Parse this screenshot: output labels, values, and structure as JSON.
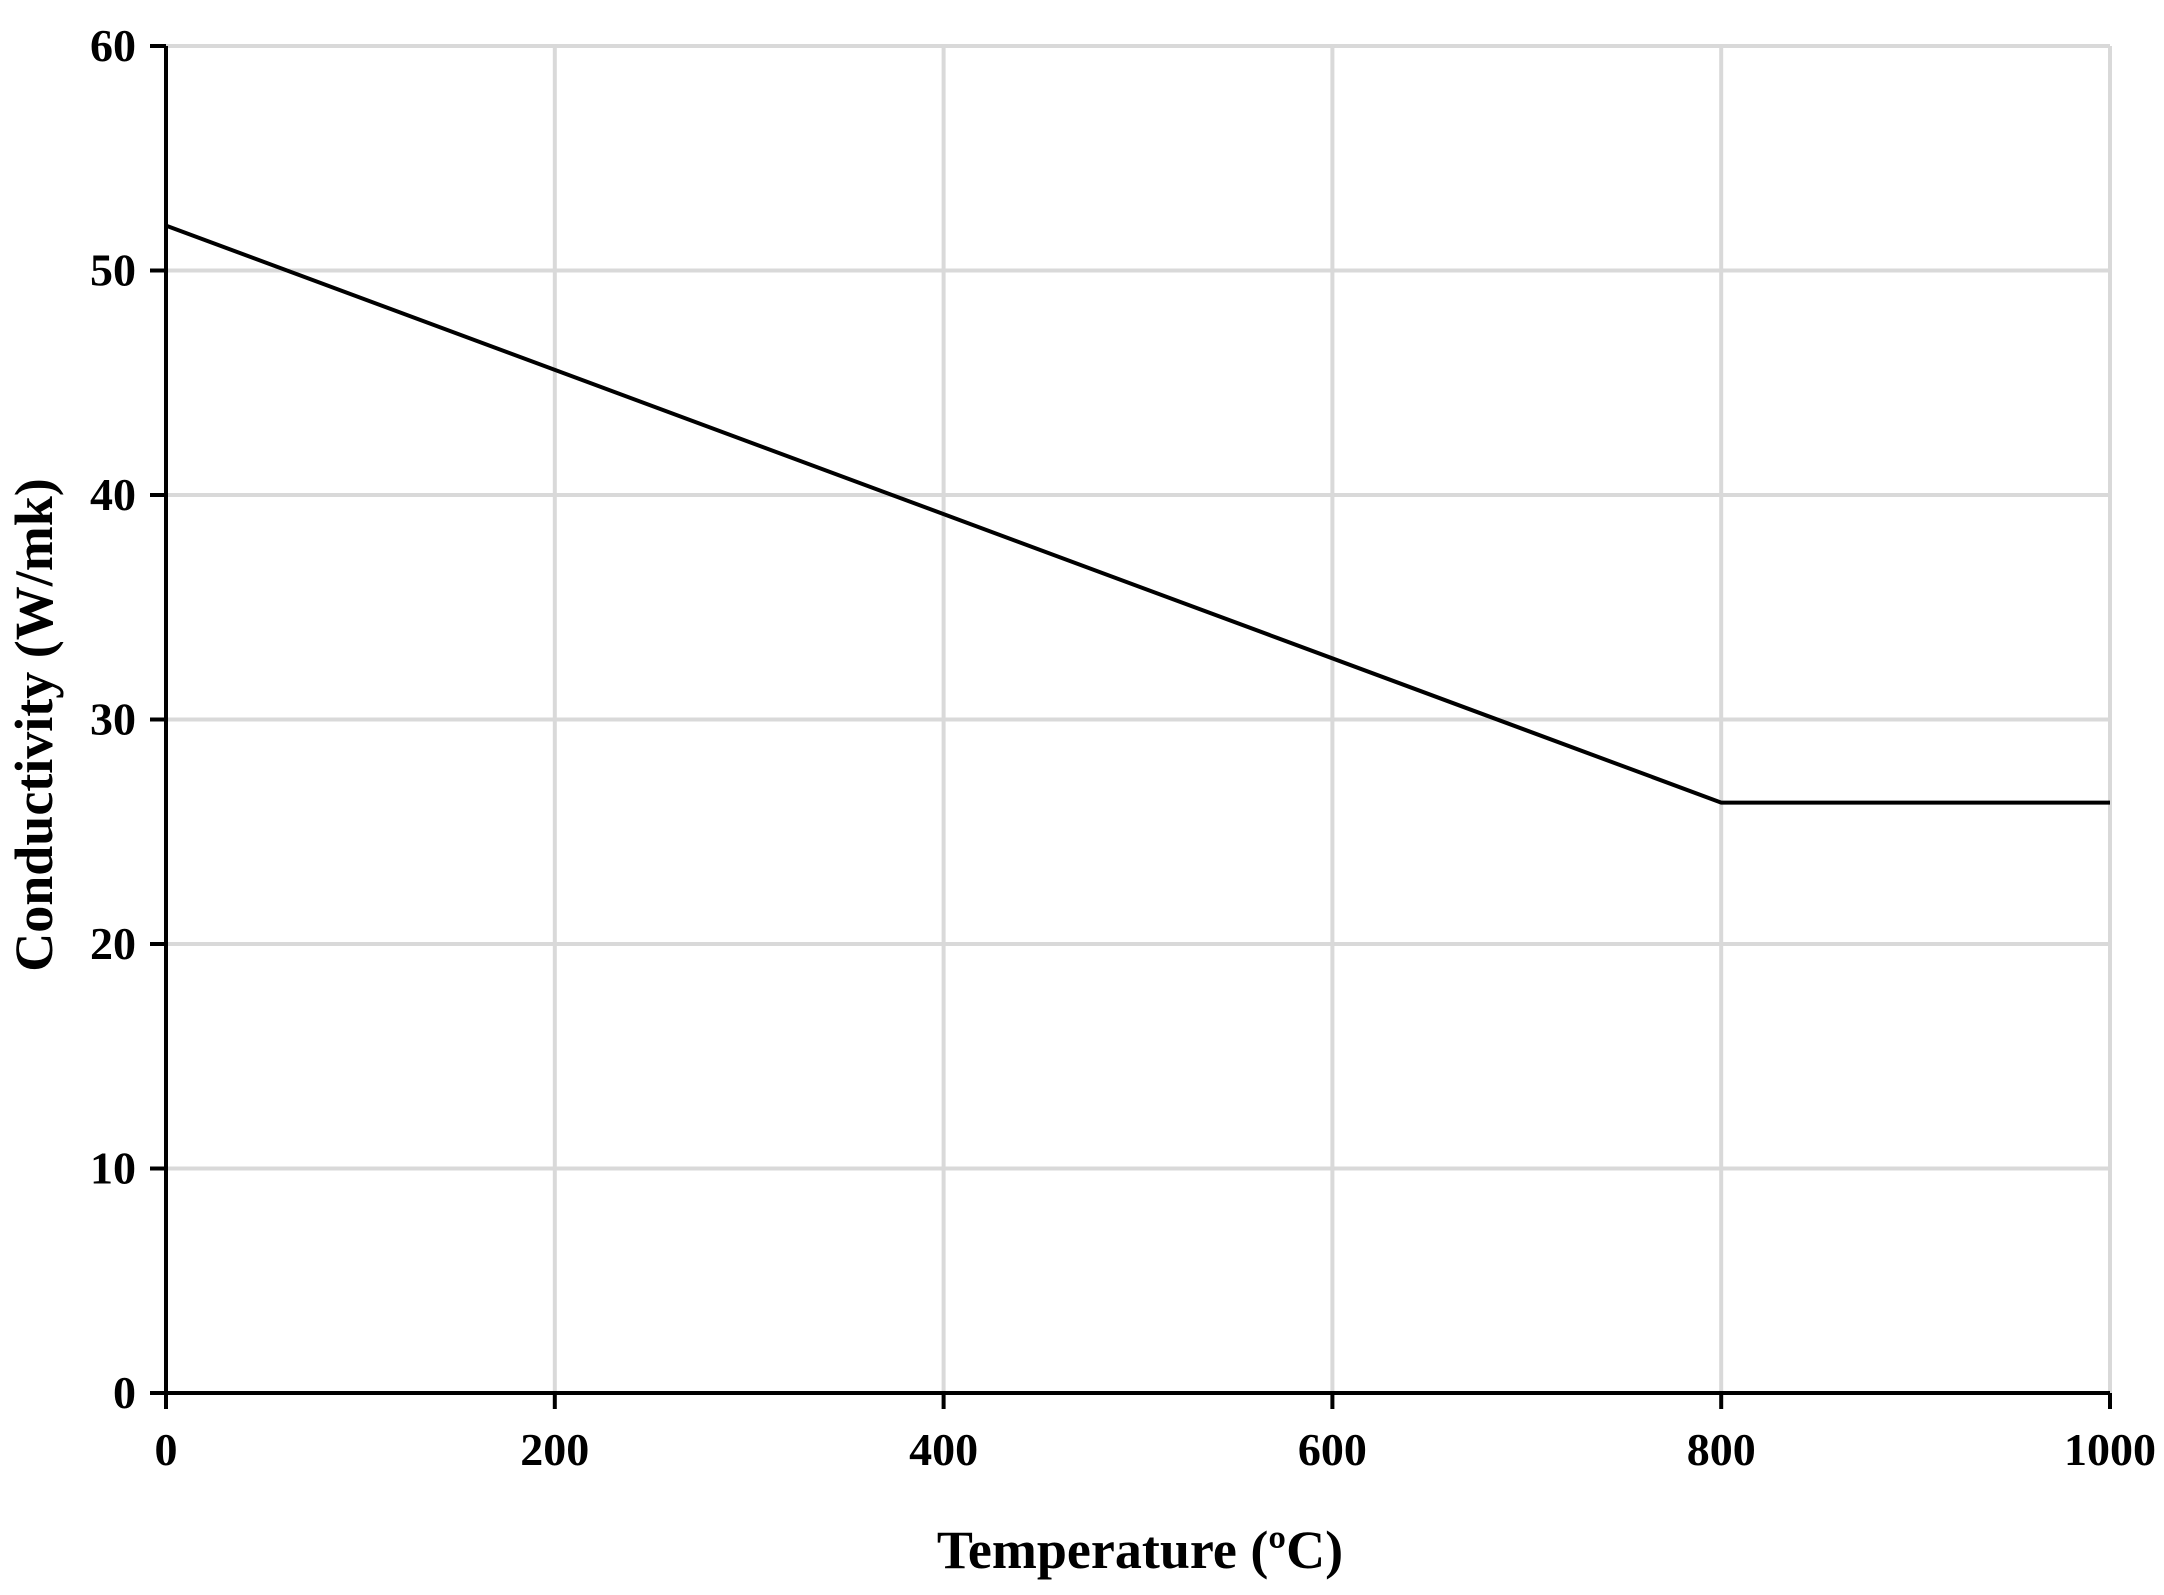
{
  "chart_data": {
    "type": "line",
    "title": "",
    "xlabel": "Temperature  (ºC)",
    "ylabel": "Conductivity  (W/mk)",
    "xlim": [
      0,
      1000
    ],
    "ylim": [
      0,
      60
    ],
    "xticks": [
      0,
      200,
      400,
      600,
      800,
      1000
    ],
    "yticks": [
      0,
      10,
      20,
      30,
      40,
      50,
      60
    ],
    "grid": true,
    "legend": "none",
    "series": [
      {
        "color": "#000000",
        "x": [
          0,
          800,
          1000
        ],
        "y": [
          52.0,
          26.3,
          26.3
        ]
      }
    ],
    "colors": {
      "grid": "#d9d9d9",
      "axis": "#000000",
      "line": "#000000"
    }
  }
}
